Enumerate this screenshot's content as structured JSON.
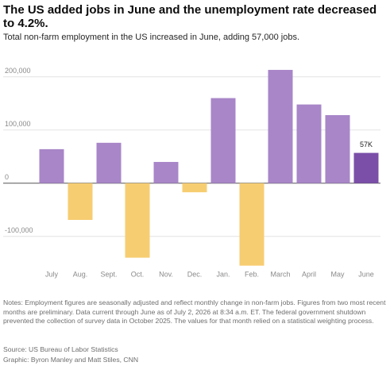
{
  "chart_data": {
    "type": "bar",
    "title": "The US added jobs in June and the unemployment rate decreased to 4.2%.",
    "subtitle": "Total non-farm employment in the US increased in June, adding 57,000 jobs.",
    "categories": [
      "July",
      "Aug.",
      "Sept.",
      "Oct.",
      "Nov.",
      "Dec.",
      "Jan.",
      "Feb.",
      "March",
      "April",
      "May",
      "June"
    ],
    "values": [
      64000,
      -69000,
      76000,
      -140000,
      40000,
      -17000,
      160000,
      -155000,
      213000,
      148000,
      128000,
      57000
    ],
    "value_labels": [
      null,
      null,
      null,
      null,
      null,
      null,
      null,
      null,
      null,
      null,
      null,
      "57K"
    ],
    "colors": [
      "#a886c8",
      "#f7cd72",
      "#a886c8",
      "#f7cd72",
      "#a886c8",
      "#f7cd72",
      "#a886c8",
      "#f7cd72",
      "#a886c8",
      "#a886c8",
      "#a886c8",
      "#7b4fa8"
    ],
    "ylim": [
      -163000,
      225000
    ],
    "yticks": [
      {
        "value": -100000,
        "label": "-100,000"
      },
      0,
      {
        "value": 100000,
        "label": "100,000"
      },
      {
        "value": 200000,
        "label": "200,000"
      }
    ],
    "grid": true,
    "notes": "Notes: Employment figures are seasonally adjusted and reflect monthly change in non-farm jobs. Figures from two most recent months are preliminary. Data current through June as of July 2, 2026 at 8:34 a.m. ET. The federal government shutdown prevented the collection of survey data in October 2025. The values for that month relied on a statistical weighting process.",
    "source": "Source: US Bureau of Labor Statistics",
    "credit": "Graphic: Byron Manley and Matt Stiles, CNN"
  }
}
